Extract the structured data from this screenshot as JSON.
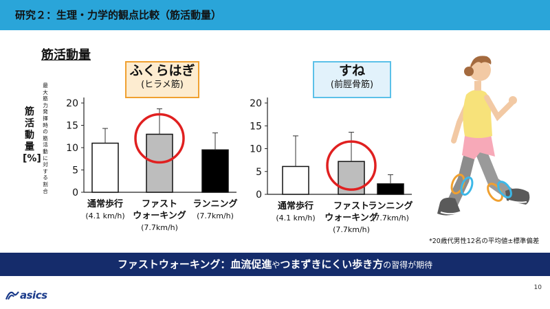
{
  "header": {
    "title": "研究２：生理・力学的観点比較（筋活動量）"
  },
  "section_title": "筋活動量",
  "y_axis": {
    "unit_label": "筋活動量[%]",
    "description": "最大筋力発揮時の筋活動に対する割合"
  },
  "muscle_labels": [
    {
      "name": "ふくらはぎ",
      "sub": "(ヒラメ筋)"
    },
    {
      "name": "すね",
      "sub": "(前脛骨筋)"
    }
  ],
  "chart_data": [
    {
      "type": "bar",
      "title": "ふくらはぎ (ヒラメ筋)",
      "categories": [
        "通常歩行",
        "ファスト ウォーキング",
        "ランニング"
      ],
      "category_speeds": [
        "(4.1 km/h)",
        "(7.7km/h)",
        "(7.7km/h)"
      ],
      "values": [
        11.0,
        13.0,
        9.5
      ],
      "error_upper": [
        14.3,
        18.7,
        13.3
      ],
      "bar_colors": [
        "#ffffff",
        "#bdbdbd",
        "#000000"
      ],
      "highlight_index": 1,
      "ylim": [
        0,
        20
      ],
      "yticks": [
        0,
        5,
        10,
        15,
        20
      ],
      "ylabel": "筋活動量[%]"
    },
    {
      "type": "bar",
      "title": "すね (前脛骨筋)",
      "categories": [
        "通常歩行",
        "ファスト ウォーキング",
        "ランニング"
      ],
      "category_speeds": [
        "(4.1 km/h)",
        "(7.7km/h)",
        "(7.7km/h)"
      ],
      "values": [
        6.1,
        7.2,
        2.3
      ],
      "error_upper": [
        12.8,
        13.6,
        4.3
      ],
      "bar_colors": [
        "#ffffff",
        "#bdbdbd",
        "#000000"
      ],
      "highlight_index": 1,
      "ylim": [
        0,
        20
      ],
      "yticks": [
        0,
        5,
        10,
        15,
        20
      ],
      "ylabel": "筋活動量[%]"
    }
  ],
  "footnote": "*20歳代男性12名の平均値±標準偏差",
  "banner": {
    "part1": "ファストウォーキング：血流促進",
    "part2": "や",
    "part3": "つまずきにくい歩き方",
    "part4": "の習得が期待"
  },
  "page_number": "10",
  "logo_text": "asics",
  "colors": {
    "header_bg": "#2aa5d9",
    "banner_bg": "#152c6b",
    "calf_box_border": "#f0a030",
    "calf_box_bg": "#fdecd0",
    "shin_box_border": "#5bc0e8",
    "shin_box_bg": "#e2f2fb",
    "highlight_circle": "#e02020"
  }
}
